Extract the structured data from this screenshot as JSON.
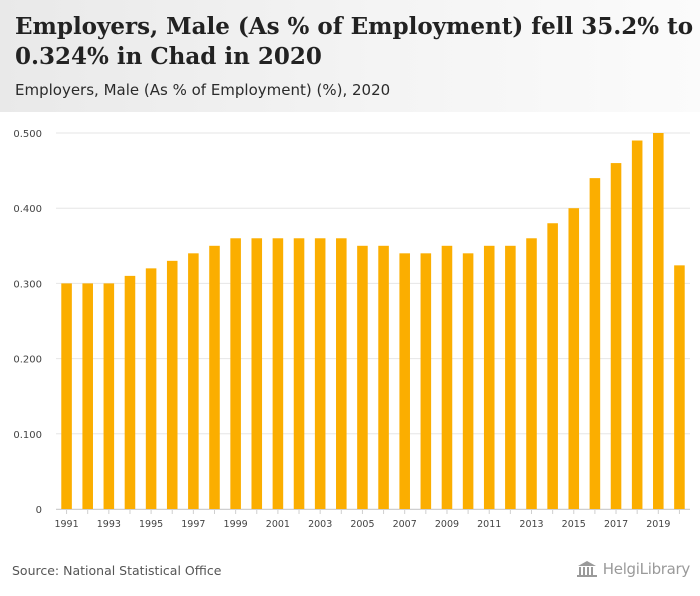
{
  "header": {
    "title": "Employers, Male (As % of Employment) fell 35.2% to 0.324% in Chad in 2020",
    "subtitle": "Employers, Male (As % of Employment) (%), 2020"
  },
  "footer": {
    "source": "Source: National Statistical Office",
    "brand": "HelgiLibrary"
  },
  "colors": {
    "bar": "#FBAE00",
    "grid": "#e6e6e6",
    "axis_text": "#444444"
  },
  "chart_data": {
    "type": "bar",
    "title": "Employers, Male (As % of Employment) fell 35.2% to 0.324% in Chad in 2020",
    "subtitle": "Employers, Male (As % of Employment) (%), 2020",
    "xlabel": "",
    "ylabel": "",
    "ylim": [
      0,
      0.5
    ],
    "yticks": [
      "0",
      "0.100",
      "0.200",
      "0.300",
      "0.400",
      "0.500"
    ],
    "ytick_values": [
      0,
      0.1,
      0.2,
      0.3,
      0.4,
      0.5
    ],
    "grid": true,
    "categories": [
      "1991",
      "1992",
      "1993",
      "1994",
      "1995",
      "1996",
      "1997",
      "1998",
      "1999",
      "2000",
      "2001",
      "2002",
      "2003",
      "2004",
      "2005",
      "2006",
      "2007",
      "2008",
      "2009",
      "2010",
      "2011",
      "2012",
      "2013",
      "2014",
      "2015",
      "2016",
      "2017",
      "2018",
      "2019",
      "2020"
    ],
    "xtick_labels": [
      "1991",
      "",
      "1993",
      "",
      "1995",
      "",
      "1997",
      "",
      "1999",
      "",
      "2001",
      "",
      "2003",
      "",
      "2005",
      "",
      "2007",
      "",
      "2009",
      "",
      "2011",
      "",
      "2013",
      "",
      "2015",
      "",
      "2017",
      "",
      "2019",
      ""
    ],
    "values": [
      0.3,
      0.3,
      0.3,
      0.31,
      0.32,
      0.33,
      0.34,
      0.35,
      0.36,
      0.36,
      0.36,
      0.36,
      0.36,
      0.36,
      0.35,
      0.35,
      0.34,
      0.34,
      0.35,
      0.34,
      0.35,
      0.35,
      0.36,
      0.38,
      0.4,
      0.44,
      0.46,
      0.49,
      0.5,
      0.324
    ]
  }
}
